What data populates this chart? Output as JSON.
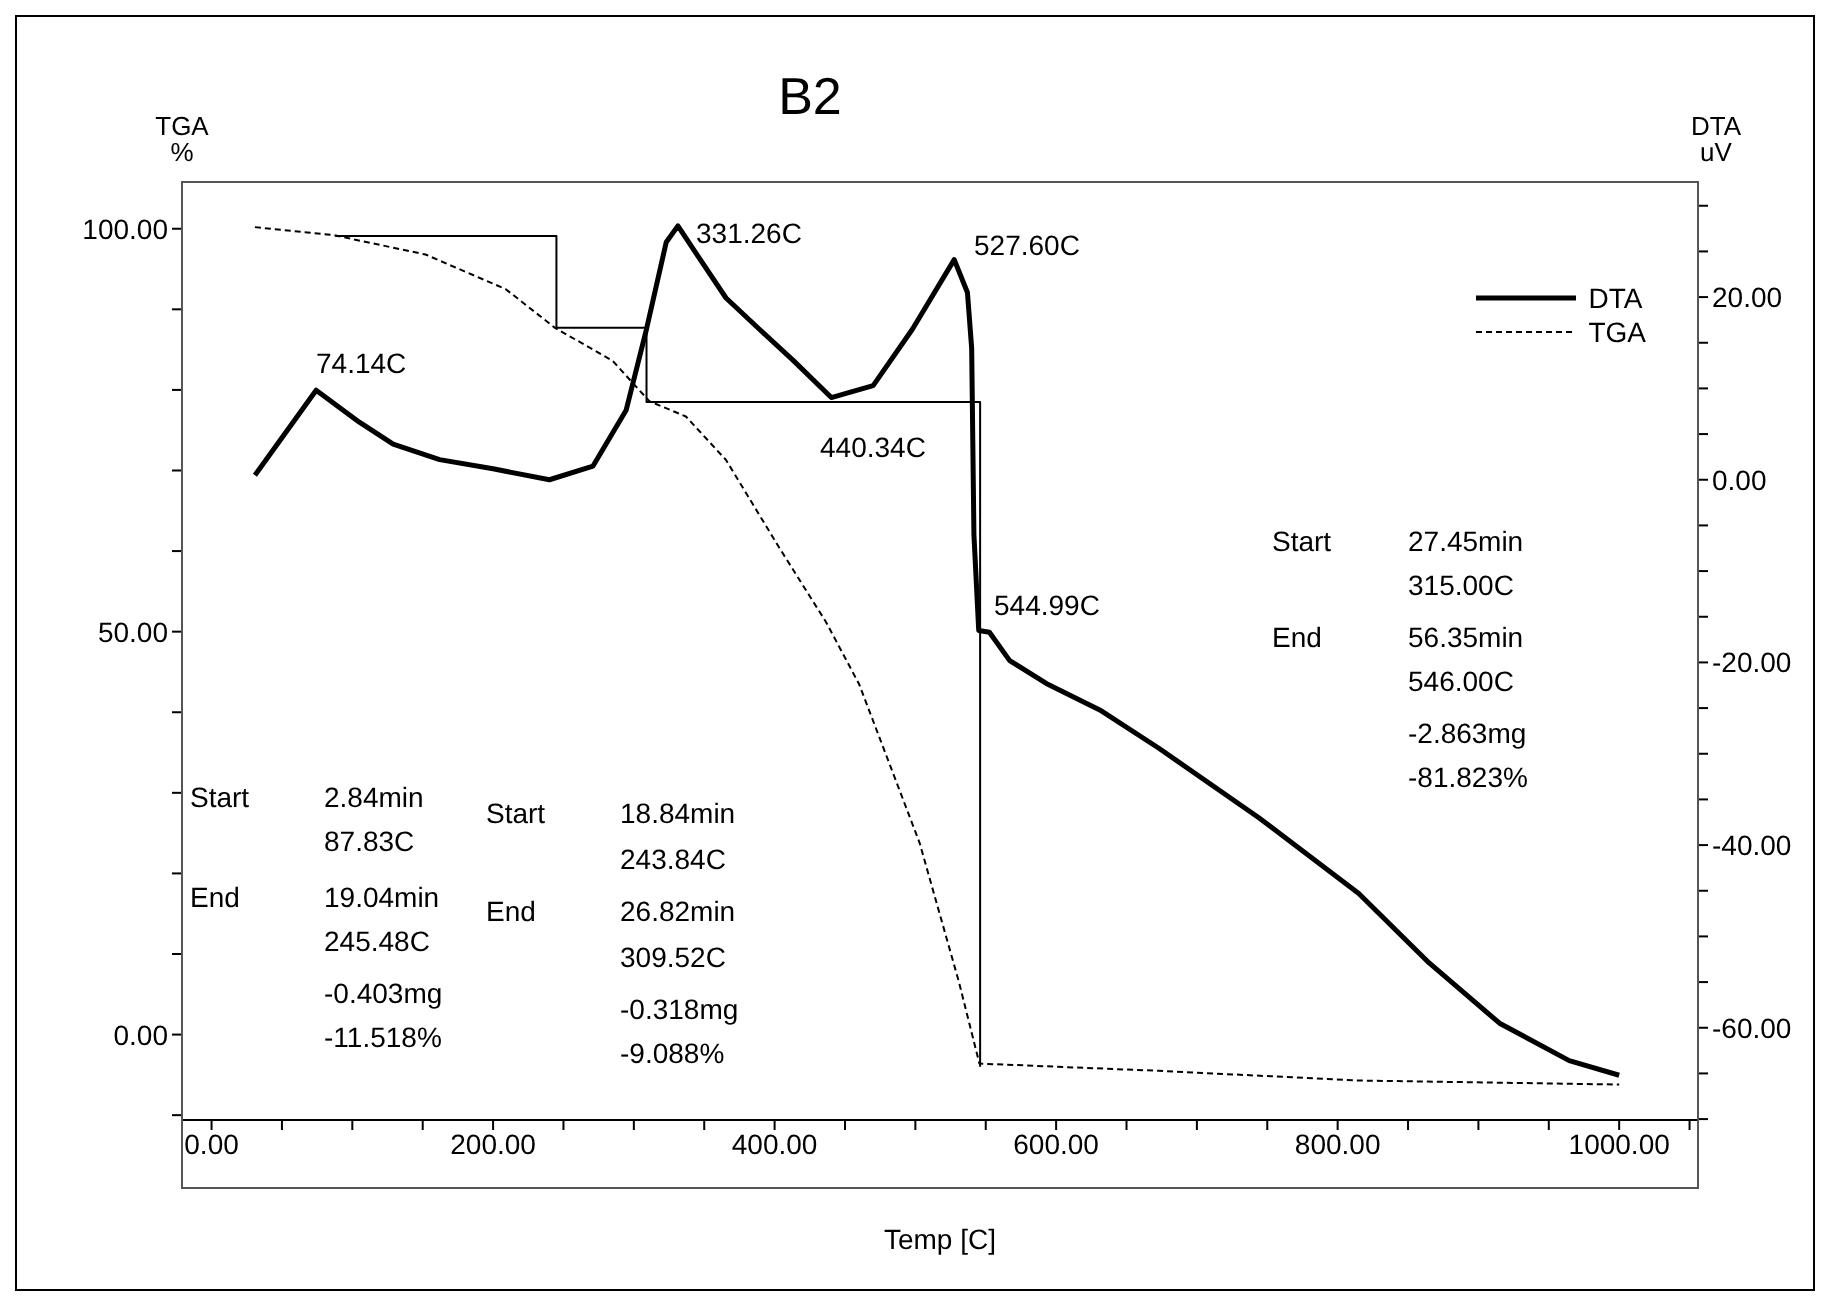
{
  "chart_data": {
    "type": "line",
    "title": "B2",
    "xlabel": "Temp  [C]",
    "ylabel": "TGA\n%",
    "y2label": "DTA\nuV",
    "xlim": [
      -21,
      1056
    ],
    "ylim": [
      -10.6,
      105.8
    ],
    "y2lim": [
      -70.1,
      32.6
    ],
    "xticks": [
      {
        "value": 0,
        "label": "0.00"
      },
      {
        "value": 50,
        "label": null
      },
      {
        "value": 100,
        "label": null
      },
      {
        "value": 150,
        "label": null
      },
      {
        "value": 200,
        "label": "200.00"
      },
      {
        "value": 250,
        "label": null
      },
      {
        "value": 300,
        "label": null
      },
      {
        "value": 350,
        "label": null
      },
      {
        "value": 400,
        "label": "400.00"
      },
      {
        "value": 450,
        "label": null
      },
      {
        "value": 500,
        "label": null
      },
      {
        "value": 550,
        "label": null
      },
      {
        "value": 600,
        "label": "600.00"
      },
      {
        "value": 650,
        "label": null
      },
      {
        "value": 700,
        "label": null
      },
      {
        "value": 750,
        "label": null
      },
      {
        "value": 800,
        "label": "800.00"
      },
      {
        "value": 850,
        "label": null
      },
      {
        "value": 900,
        "label": null
      },
      {
        "value": 950,
        "label": null
      },
      {
        "value": 1000,
        "label": "1000.00"
      },
      {
        "value": 1050,
        "label": null
      }
    ],
    "yticks": [
      {
        "value": -10,
        "label": null
      },
      {
        "value": 0,
        "label": "0.00"
      },
      {
        "value": 10,
        "label": null
      },
      {
        "value": 20,
        "label": null
      },
      {
        "value": 30,
        "label": null
      },
      {
        "value": 40,
        "label": null
      },
      {
        "value": 50,
        "label": "50.00"
      },
      {
        "value": 60,
        "label": null
      },
      {
        "value": 70,
        "label": null
      },
      {
        "value": 80,
        "label": null
      },
      {
        "value": 90,
        "label": null
      },
      {
        "value": 100,
        "label": "100.00"
      }
    ],
    "y2ticks": [
      {
        "value": -70,
        "label": null
      },
      {
        "value": -65,
        "label": null
      },
      {
        "value": -60,
        "label": "-60.00"
      },
      {
        "value": -55,
        "label": null
      },
      {
        "value": -50,
        "label": null
      },
      {
        "value": -45,
        "label": null
      },
      {
        "value": -40,
        "label": "-40.00"
      },
      {
        "value": -35,
        "label": null
      },
      {
        "value": -30,
        "label": null
      },
      {
        "value": -25,
        "label": null
      },
      {
        "value": -20,
        "label": "-20.00"
      },
      {
        "value": -15,
        "label": null
      },
      {
        "value": -10,
        "label": null
      },
      {
        "value": -5,
        "label": null
      },
      {
        "value": 0,
        "label": "0.00"
      },
      {
        "value": 5,
        "label": null
      },
      {
        "value": 10,
        "label": null
      },
      {
        "value": 15,
        "label": null
      },
      {
        "value": 20,
        "label": "20.00"
      },
      {
        "value": 25,
        "label": null
      },
      {
        "value": 30,
        "label": null
      }
    ],
    "legend": "top right",
    "series": [
      {
        "name": "DTA",
        "axis": "y2",
        "color": "#000000",
        "line_style": "solid",
        "x": [
          30.8,
          74.3,
          105,
          129,
          162,
          200,
          240,
          271,
          294.5,
          309,
          323,
          331.3,
          342,
          365.5,
          389,
          413,
          440.3,
          470,
          498,
          527.6,
          537,
          540,
          541.6,
          545,
          552.6,
          567,
          593,
          631,
          673,
          744,
          815,
          865,
          915,
          964.5,
          1000
        ],
        "values": [
          0.5,
          9.8,
          6.3,
          3.9,
          2.2,
          1.2,
          0,
          1.5,
          7.6,
          16.5,
          26,
          27.8,
          25.3,
          19.9,
          16.5,
          13.1,
          9.0,
          10.3,
          16.5,
          24.1,
          20.5,
          14.4,
          -6.0,
          -16.5,
          -16.7,
          -19.8,
          -22.3,
          -25.2,
          -29.4,
          -37,
          -45.3,
          -52.9,
          -59.5,
          -63.6,
          -65.2
        ]
      },
      {
        "name": "TGA",
        "axis": "y",
        "color": "#000000",
        "line_style": "dashed",
        "x": [
          30.8,
          87,
          152,
          209,
          244,
          285,
          311,
          337,
          365.5,
          403,
          436.5,
          460,
          503,
          531,
          545.5,
          673,
          815,
          1000
        ],
        "values": [
          100.2,
          99.2,
          96.8,
          92.5,
          87.7,
          83.6,
          78.6,
          76.7,
          71.3,
          60.5,
          51.2,
          43.5,
          23.8,
          6.5,
          -3.6,
          -4.5,
          -5.7,
          -6.2
        ]
      },
      {
        "type": "line",
        "axis": "y",
        "color": "#000000",
        "line_style": "solid",
        "x": [
          87.83,
          245,
          245,
          309,
          309,
          546,
          546
        ],
        "values": [
          99.1,
          99.1,
          87.7,
          87.7,
          78.5,
          78.5,
          -4
        ]
      }
    ],
    "annotations": [
      "74.14C",
      "331.26C",
      "527.60C",
      "440.34C",
      "544.99C",
      "Start",
      "2.84min",
      "87.83C",
      "End",
      "19.04min",
      "245.48C",
      "-0.403mg",
      "-11.518%",
      "Start",
      "18.84min",
      "243.84C",
      "End",
      "26.82min",
      "309.52C",
      "-0.318mg",
      "-9.088%",
      "Start",
      "27.45min",
      "315.00C",
      "End",
      "56.35min",
      "546.00C",
      "-2.863mg",
      "-81.823%"
    ]
  }
}
